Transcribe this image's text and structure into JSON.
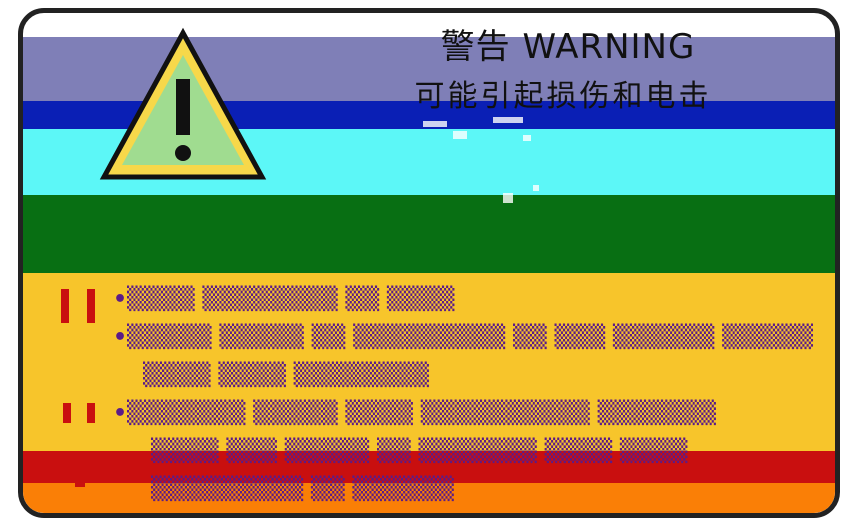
{
  "header": {
    "title": "警告 WARNING",
    "subtitle": "可能引起损伤和电击"
  },
  "colors": {
    "frame": "#222222",
    "purple_band": "#7f7fb7",
    "blue_band": "#0a1fb5",
    "cyan_band": "#5cf7f7",
    "green_band": "#086f13",
    "yellow_band": "#f7c52b",
    "red_band": "#c90f0f",
    "orange_band": "#fa7f06",
    "text_purple": "#5b1b88"
  },
  "icons": {
    "warning": "warning-triangle-icon"
  }
}
